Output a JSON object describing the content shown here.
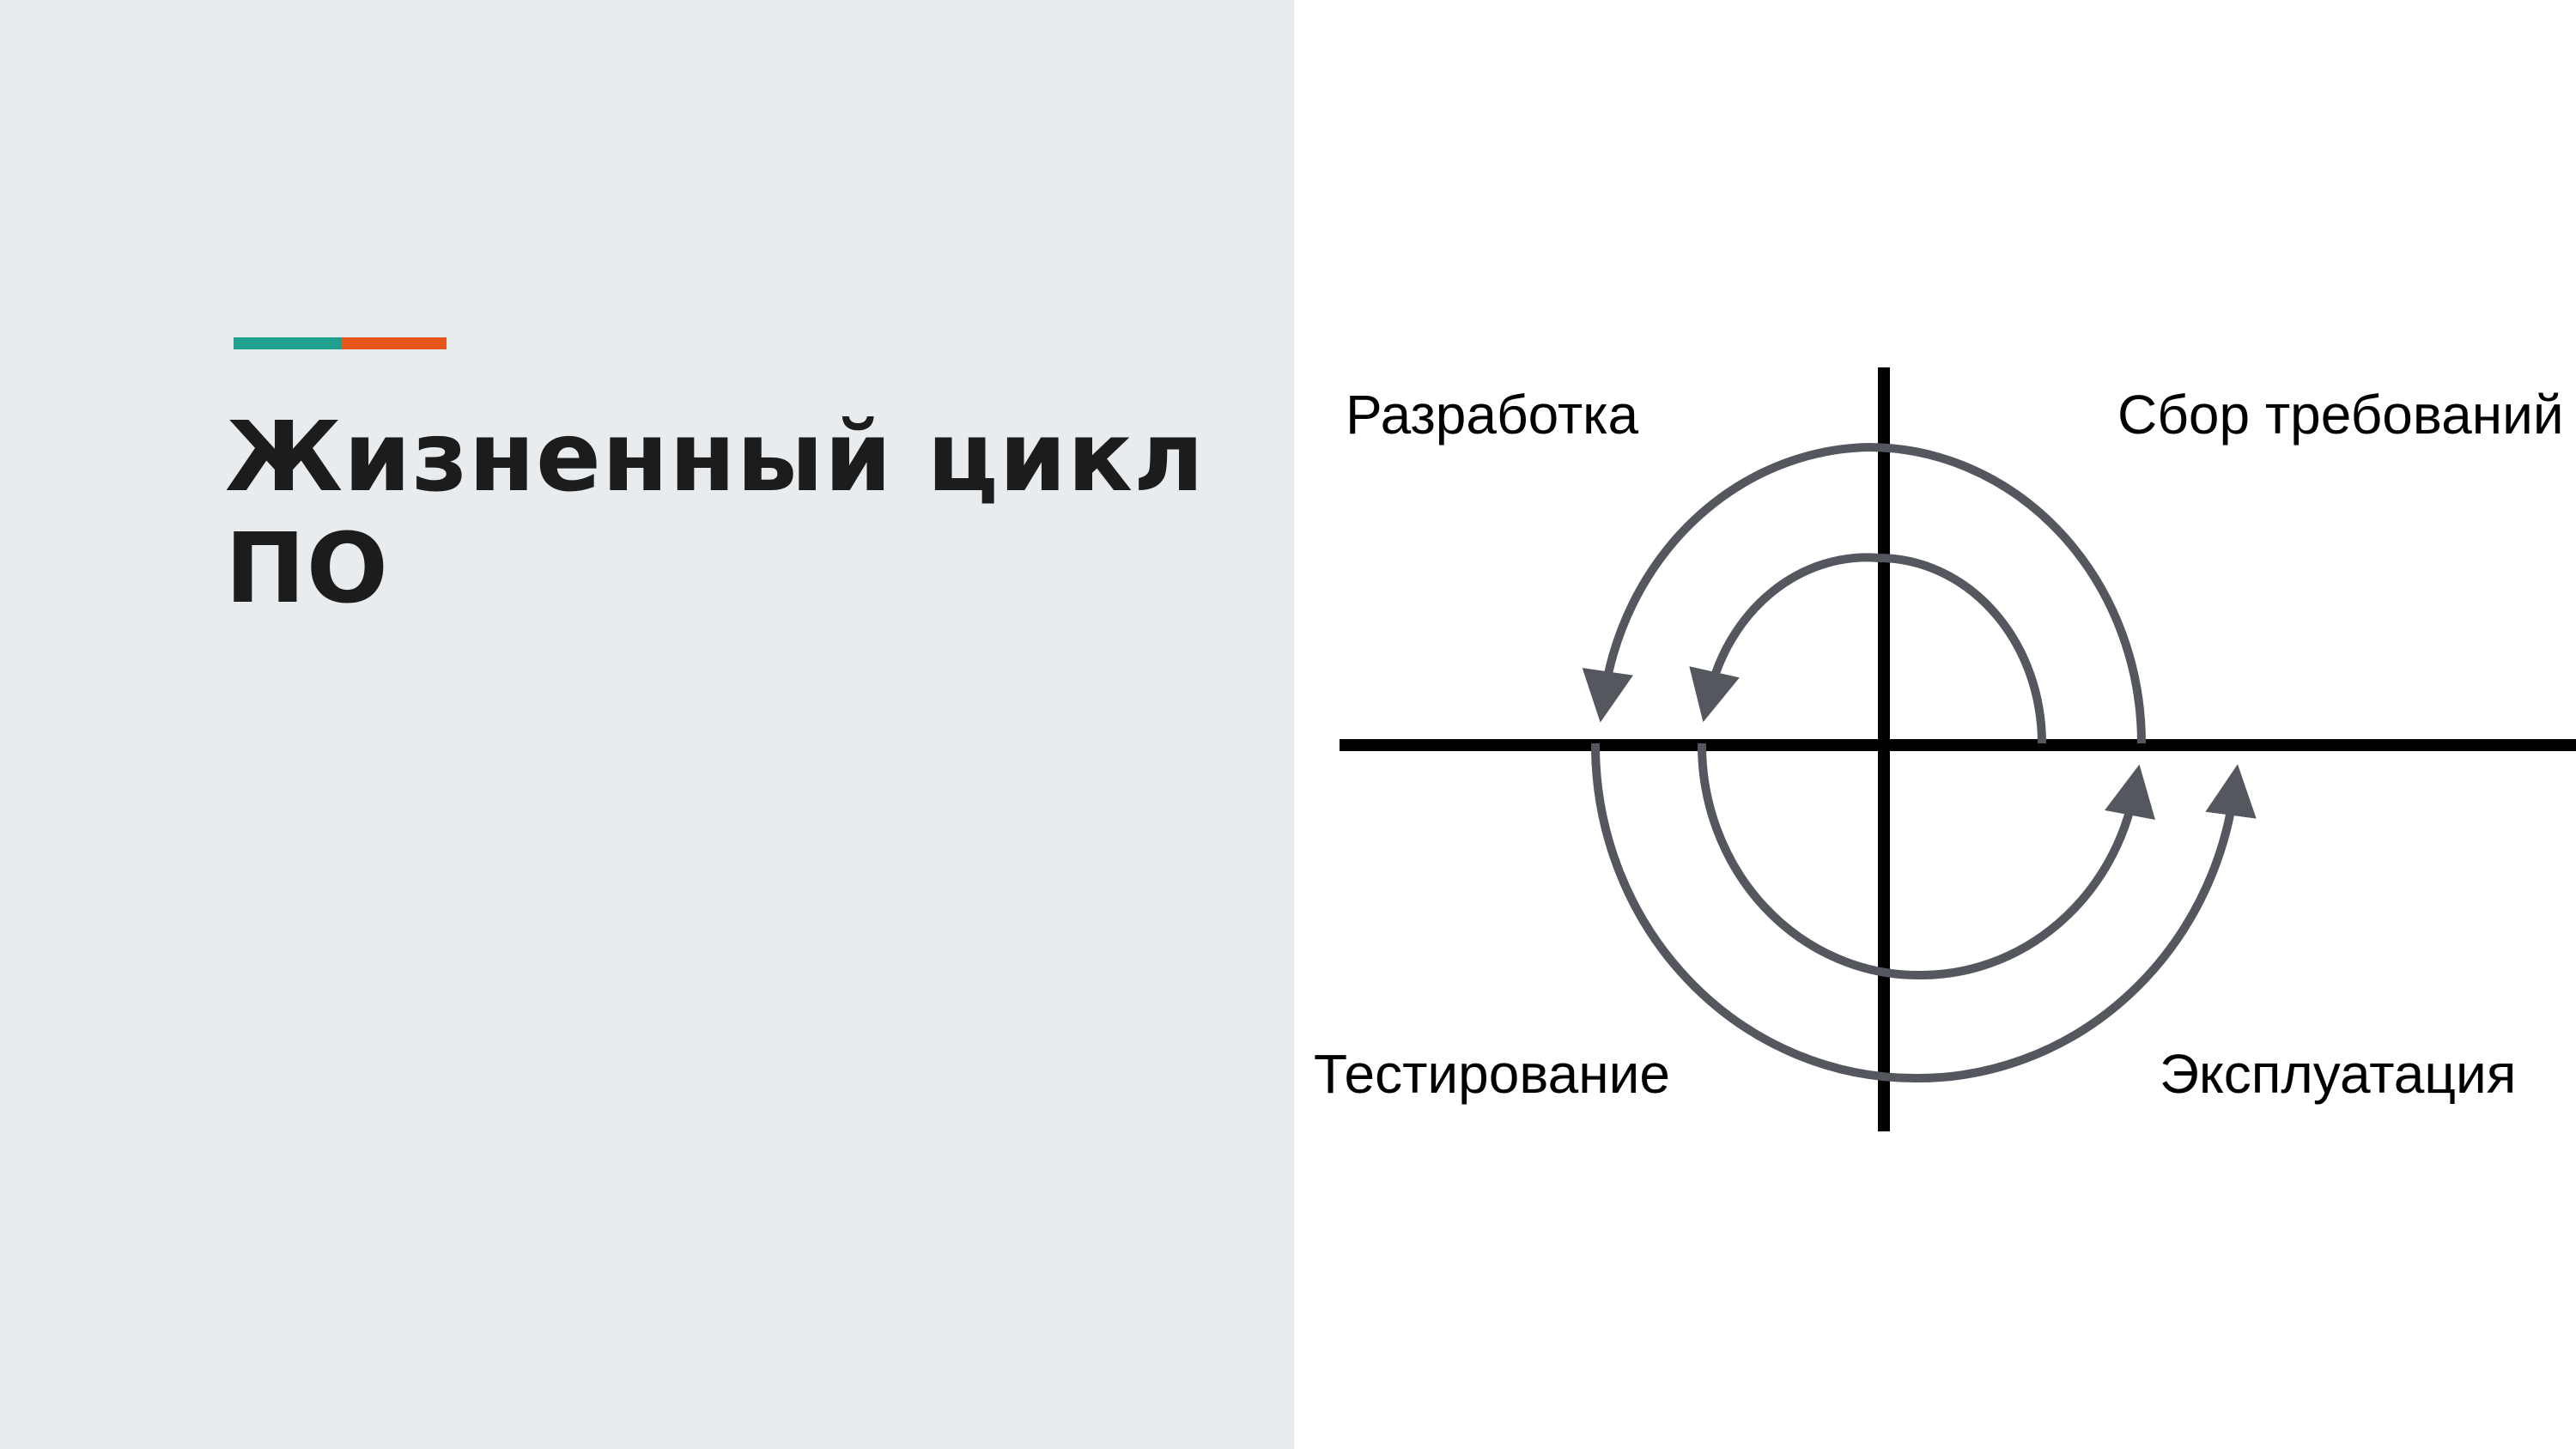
{
  "slide": {
    "title": "Жизненный цикл ПО"
  },
  "diagram": {
    "labels": {
      "top_left": "Разработка",
      "top_right": "Сбор требований",
      "bottom_left": "Тестирование",
      "bottom_right": "Эксплуатация"
    }
  },
  "colors": {
    "background_left": "#e9ecee",
    "accent_teal": "#1fa08e",
    "accent_orange": "#e5571a",
    "title_text": "#1c1c1c",
    "axis": "#000000",
    "spiral": "#54575d"
  }
}
